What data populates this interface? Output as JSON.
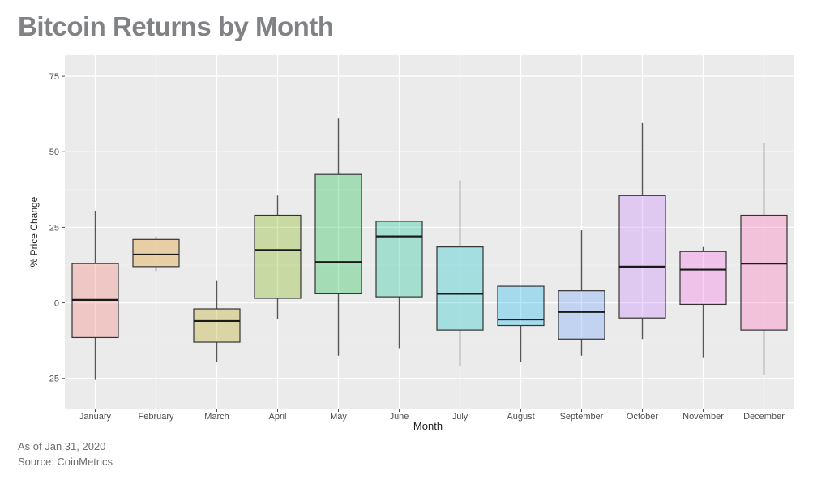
{
  "page": {
    "title": "Bitcoin Returns by Month",
    "footnote_date": "As of Jan 31, 2020",
    "footnote_source": "Source: CoinMetrics"
  },
  "chart_data": {
    "type": "boxplot",
    "title": "Bitcoin Returns by Month",
    "xlabel": "Month",
    "ylabel": "% Price Change",
    "ylim": [
      -35,
      82
    ],
    "yticks": [
      -25,
      0,
      25,
      50,
      75
    ],
    "grid": true,
    "categories": [
      "January",
      "February",
      "March",
      "April",
      "May",
      "June",
      "July",
      "August",
      "September",
      "October",
      "November",
      "December"
    ],
    "boxes": [
      {
        "month": "January",
        "min": -25.5,
        "q1": -11.5,
        "median": 1,
        "q3": 13,
        "max": 30.5,
        "color": "#F8766D"
      },
      {
        "month": "February",
        "min": 10.5,
        "q1": 12,
        "median": 16,
        "q3": 21,
        "max": 22,
        "color": "#DE8C00"
      },
      {
        "month": "March",
        "min": -19.5,
        "q1": -13,
        "median": -6,
        "q3": -2,
        "max": 7.5,
        "color": "#B79F00"
      },
      {
        "month": "April",
        "min": -5.5,
        "q1": 1.5,
        "median": 17.5,
        "q3": 29,
        "max": 35.5,
        "color": "#7CAE00"
      },
      {
        "month": "May",
        "min": -17.5,
        "q1": 3,
        "median": 13.5,
        "q3": 42.5,
        "max": 61,
        "color": "#00BA38"
      },
      {
        "month": "June",
        "min": -15,
        "q1": 2,
        "median": 22,
        "q3": 27,
        "max": 27,
        "color": "#00C08B"
      },
      {
        "month": "July",
        "min": -21,
        "q1": -9,
        "median": 3,
        "q3": 18.5,
        "max": 40.5,
        "color": "#00BFC4"
      },
      {
        "month": "August",
        "min": -19.5,
        "q1": -7.5,
        "median": -5.5,
        "q3": 5.5,
        "max": 5.5,
        "color": "#00B4F0"
      },
      {
        "month": "September",
        "min": -17.5,
        "q1": -12,
        "median": -3,
        "q3": 4,
        "max": 24,
        "color": "#619CFF"
      },
      {
        "month": "October",
        "min": -12,
        "q1": -5,
        "median": 12,
        "q3": 35.5,
        "max": 59.5,
        "color": "#C77CFF"
      },
      {
        "month": "November",
        "min": -18,
        "q1": -0.5,
        "median": 11,
        "q3": 17,
        "max": 18.5,
        "color": "#F564E3"
      },
      {
        "month": "December",
        "min": -24,
        "q1": -9,
        "median": 13,
        "q3": 29,
        "max": 53,
        "color": "#FF64B0"
      }
    ],
    "colors": {
      "panel_background": "#EBEBEB",
      "grid_major": "#FFFFFF",
      "grid_minor": "#F4F4F4",
      "title": "#808285",
      "box_fill_opacity": 0.3
    }
  }
}
